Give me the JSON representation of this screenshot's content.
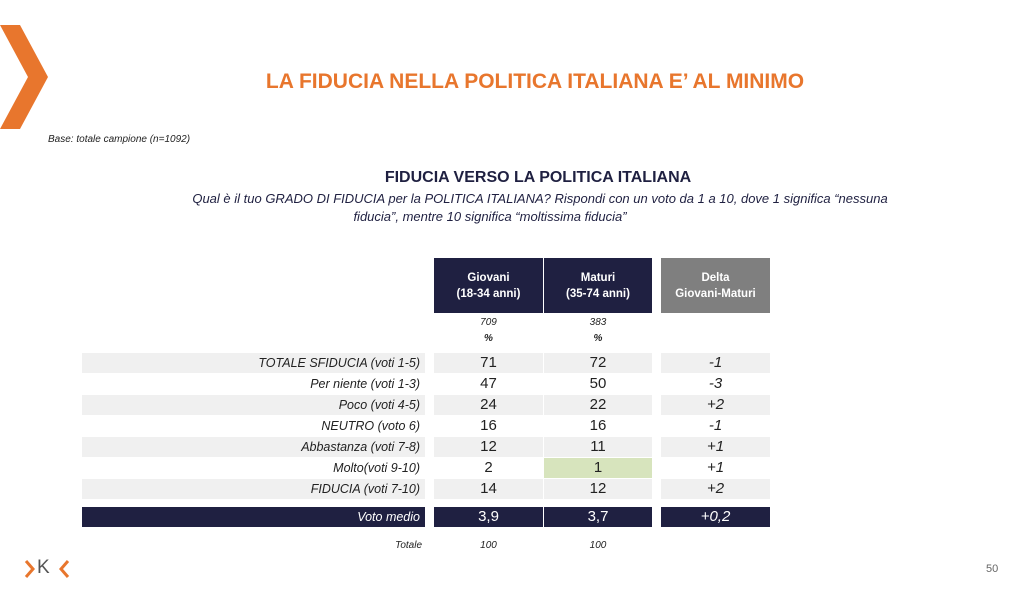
{
  "header": {
    "title": "LA FIDUCIA NELLA POLITICA ITALIANA E’ AL MINIMO",
    "base": "Base: totale campione (n=1092)"
  },
  "section": {
    "title": "FIDUCIA VERSO LA POLITICA ITALIANA",
    "question": [
      "Qual è il tuo GRADO DI FIDUCIA per la POLITICA ITALIANA? Rispondi con un voto da 1 a 10, dove 1 significa “nessuna",
      "fiducia”, mentre 10 significa “moltissima fiducia”"
    ]
  },
  "table": {
    "columns": [
      {
        "name": "Giovani",
        "range": "(18-34 anni)"
      },
      {
        "name": "Maturi",
        "range": "(35-74 anni)"
      },
      {
        "name": "Delta",
        "range": "Giovani-Maturi"
      }
    ],
    "bases": [
      "709",
      "383"
    ],
    "base_units": [
      "%",
      "%"
    ],
    "rows": [
      {
        "label": "TOTALE SFIDUCIA (voti 1-5)",
        "values": [
          "71",
          "72",
          "-1"
        ]
      },
      {
        "label": "Per niente  (voti 1-3)",
        "values": [
          "47",
          "50",
          "-3"
        ]
      },
      {
        "label": "Poco  (voti 4-5)",
        "values": [
          "24",
          "22",
          "+2"
        ]
      },
      {
        "label": "NEUTRO (voto 6)",
        "values": [
          "16",
          "16",
          "-1"
        ]
      },
      {
        "label": "Abbastanza   (voti 7-8)",
        "values": [
          "12",
          "11",
          "+1"
        ]
      },
      {
        "label": "Molto(voti 9-10)",
        "values": [
          "2",
          "1",
          "+1"
        ]
      },
      {
        "label": "FIDUCIA  (voti 7-10)",
        "values": [
          "14",
          "12",
          "+2"
        ]
      }
    ],
    "highlight": {
      "row": 5,
      "column": 1,
      "color": "#d7e4bd"
    },
    "summary": {
      "label": "Voto medio",
      "values": [
        "3,9",
        "3,7",
        "+0,2"
      ]
    },
    "total": {
      "label": "Totale",
      "values": [
        "100",
        "100"
      ]
    }
  },
  "footer": {
    "logo": "K",
    "page": "50"
  }
}
